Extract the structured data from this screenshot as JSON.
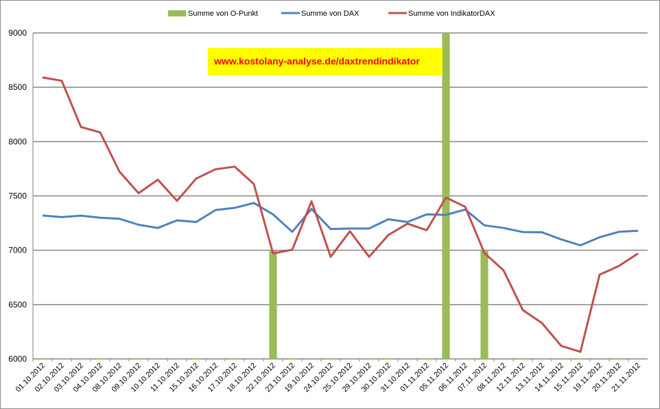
{
  "chart_data": {
    "type": "line",
    "categories": [
      "01.10.2012",
      "02.10.2012",
      "03.10.2012",
      "04.10.2012",
      "08.10.2012",
      "09.10.2012",
      "10.10.2012",
      "11.10.2012",
      "15.10.2012",
      "16.10.2012",
      "17.10.2012",
      "18.10.2012",
      "22.10.2012",
      "23.10.2012",
      "19.10.2012",
      "24.10.2012",
      "25.10.2012",
      "29.10.2012",
      "30.10.2012",
      "31.10.2012",
      "01.11.2012",
      "05.11.2012",
      "06.11.2012",
      "07.11.2012",
      "08.11.2012",
      "12.11.2012",
      "13.11.2012",
      "14.11.2012",
      "15.11.2012",
      "19.11.2012",
      "20.11.2012",
      "21.11.2012"
    ],
    "series": [
      {
        "name": "Summe von O-Punkt",
        "kind": "bar",
        "color": "#9bbb59",
        "values": [
          6000,
          6000,
          6000,
          6000,
          6000,
          6000,
          6000,
          6000,
          6000,
          6000,
          6000,
          6000,
          7000,
          6000,
          6000,
          6000,
          6000,
          6000,
          6000,
          6000,
          6000,
          9000,
          6000,
          7000,
          6000,
          6000,
          6000,
          6000,
          6000,
          6000,
          6000,
          6000
        ]
      },
      {
        "name": "Summe von DAX",
        "kind": "line",
        "color": "#4f81bd",
        "values": [
          7320,
          7305,
          7318,
          7300,
          7290,
          7235,
          7205,
          7275,
          7260,
          7370,
          7390,
          7435,
          7330,
          7170,
          7380,
          7195,
          7200,
          7200,
          7285,
          7260,
          7330,
          7325,
          7375,
          7230,
          7205,
          7168,
          7165,
          7100,
          7045,
          7120,
          7170,
          7180
        ]
      },
      {
        "name": "Summe von IndikatorDAX",
        "kind": "line",
        "color": "#c0504d",
        "values": [
          8590,
          8560,
          8135,
          8085,
          7725,
          7525,
          7650,
          7455,
          7660,
          7745,
          7770,
          7610,
          6970,
          7005,
          7450,
          6940,
          7175,
          6940,
          7140,
          7245,
          7185,
          7485,
          7400,
          6975,
          6815,
          6450,
          6330,
          6120,
          6065,
          6775,
          6855,
          6970
        ]
      }
    ],
    "ylim": [
      6000,
      9000
    ],
    "yticks": [
      "6000",
      "6500",
      "7000",
      "7500",
      "8000",
      "8500",
      "9000"
    ],
    "grid": true,
    "legend": "top",
    "annotation": "www.kostolany-analyse.de/daxtrendindikator",
    "annotation_bg": "#ffff00",
    "annotation_color": "#ff0000"
  }
}
